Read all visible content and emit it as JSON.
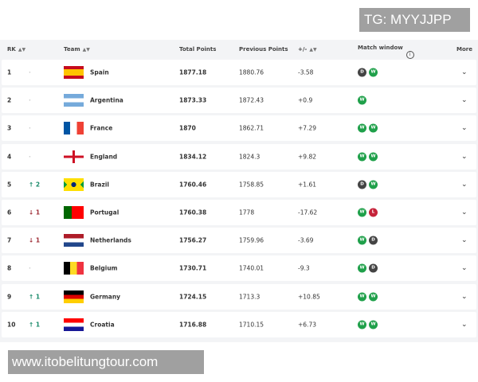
{
  "watermarks": {
    "top": "TG: MYYJJPP",
    "bottom": "www.itobelitungtour.com"
  },
  "header": {
    "rk": "RK",
    "team": "Team",
    "total": "Total Points",
    "previous": "Previous Points",
    "diff": "+/-",
    "match_window": "Match window",
    "more": "More",
    "sort_icon": "sort-icon",
    "info_icon": "info-icon"
  },
  "colors": {
    "win": "#1fa04a",
    "draw": "#444444",
    "loss": "#c6233a",
    "up": "#1a8a6a",
    "down": "#a0303a"
  },
  "rows": [
    {
      "rk": "1",
      "move": "",
      "dir": "none",
      "team": "Spain",
      "flag": "spain",
      "total": "1877.18",
      "prev": "1880.76",
      "diff": "-3.58",
      "mw": [
        "D",
        "W"
      ]
    },
    {
      "rk": "2",
      "move": "",
      "dir": "none",
      "team": "Argentina",
      "flag": "argentina",
      "total": "1873.33",
      "prev": "1872.43",
      "diff": "+0.9",
      "mw": [
        "W"
      ]
    },
    {
      "rk": "3",
      "move": "",
      "dir": "none",
      "team": "France",
      "flag": "france",
      "total": "1870",
      "prev": "1862.71",
      "diff": "+7.29",
      "mw": [
        "W",
        "W"
      ]
    },
    {
      "rk": "4",
      "move": "",
      "dir": "none",
      "team": "England",
      "flag": "england",
      "total": "1834.12",
      "prev": "1824.3",
      "diff": "+9.82",
      "mw": [
        "W",
        "W"
      ]
    },
    {
      "rk": "5",
      "move": "2",
      "dir": "up",
      "team": "Brazil",
      "flag": "brazil",
      "total": "1760.46",
      "prev": "1758.85",
      "diff": "+1.61",
      "mw": [
        "D",
        "W"
      ]
    },
    {
      "rk": "6",
      "move": "1",
      "dir": "down",
      "team": "Portugal",
      "flag": "portugal",
      "total": "1760.38",
      "prev": "1778",
      "diff": "-17.62",
      "mw": [
        "W",
        "L"
      ]
    },
    {
      "rk": "7",
      "move": "1",
      "dir": "down",
      "team": "Netherlands",
      "flag": "netherlands",
      "total": "1756.27",
      "prev": "1759.96",
      "diff": "-3.69",
      "mw": [
        "W",
        "D"
      ]
    },
    {
      "rk": "8",
      "move": "",
      "dir": "none",
      "team": "Belgium",
      "flag": "belgium",
      "total": "1730.71",
      "prev": "1740.01",
      "diff": "-9.3",
      "mw": [
        "W",
        "D"
      ]
    },
    {
      "rk": "9",
      "move": "1",
      "dir": "up",
      "team": "Germany",
      "flag": "germany",
      "total": "1724.15",
      "prev": "1713.3",
      "diff": "+10.85",
      "mw": [
        "W",
        "W"
      ]
    },
    {
      "rk": "10",
      "move": "1",
      "dir": "up",
      "team": "Croatia",
      "flag": "croatia",
      "total": "1716.88",
      "prev": "1710.15",
      "diff": "+6.73",
      "mw": [
        "W",
        "W"
      ]
    }
  ]
}
